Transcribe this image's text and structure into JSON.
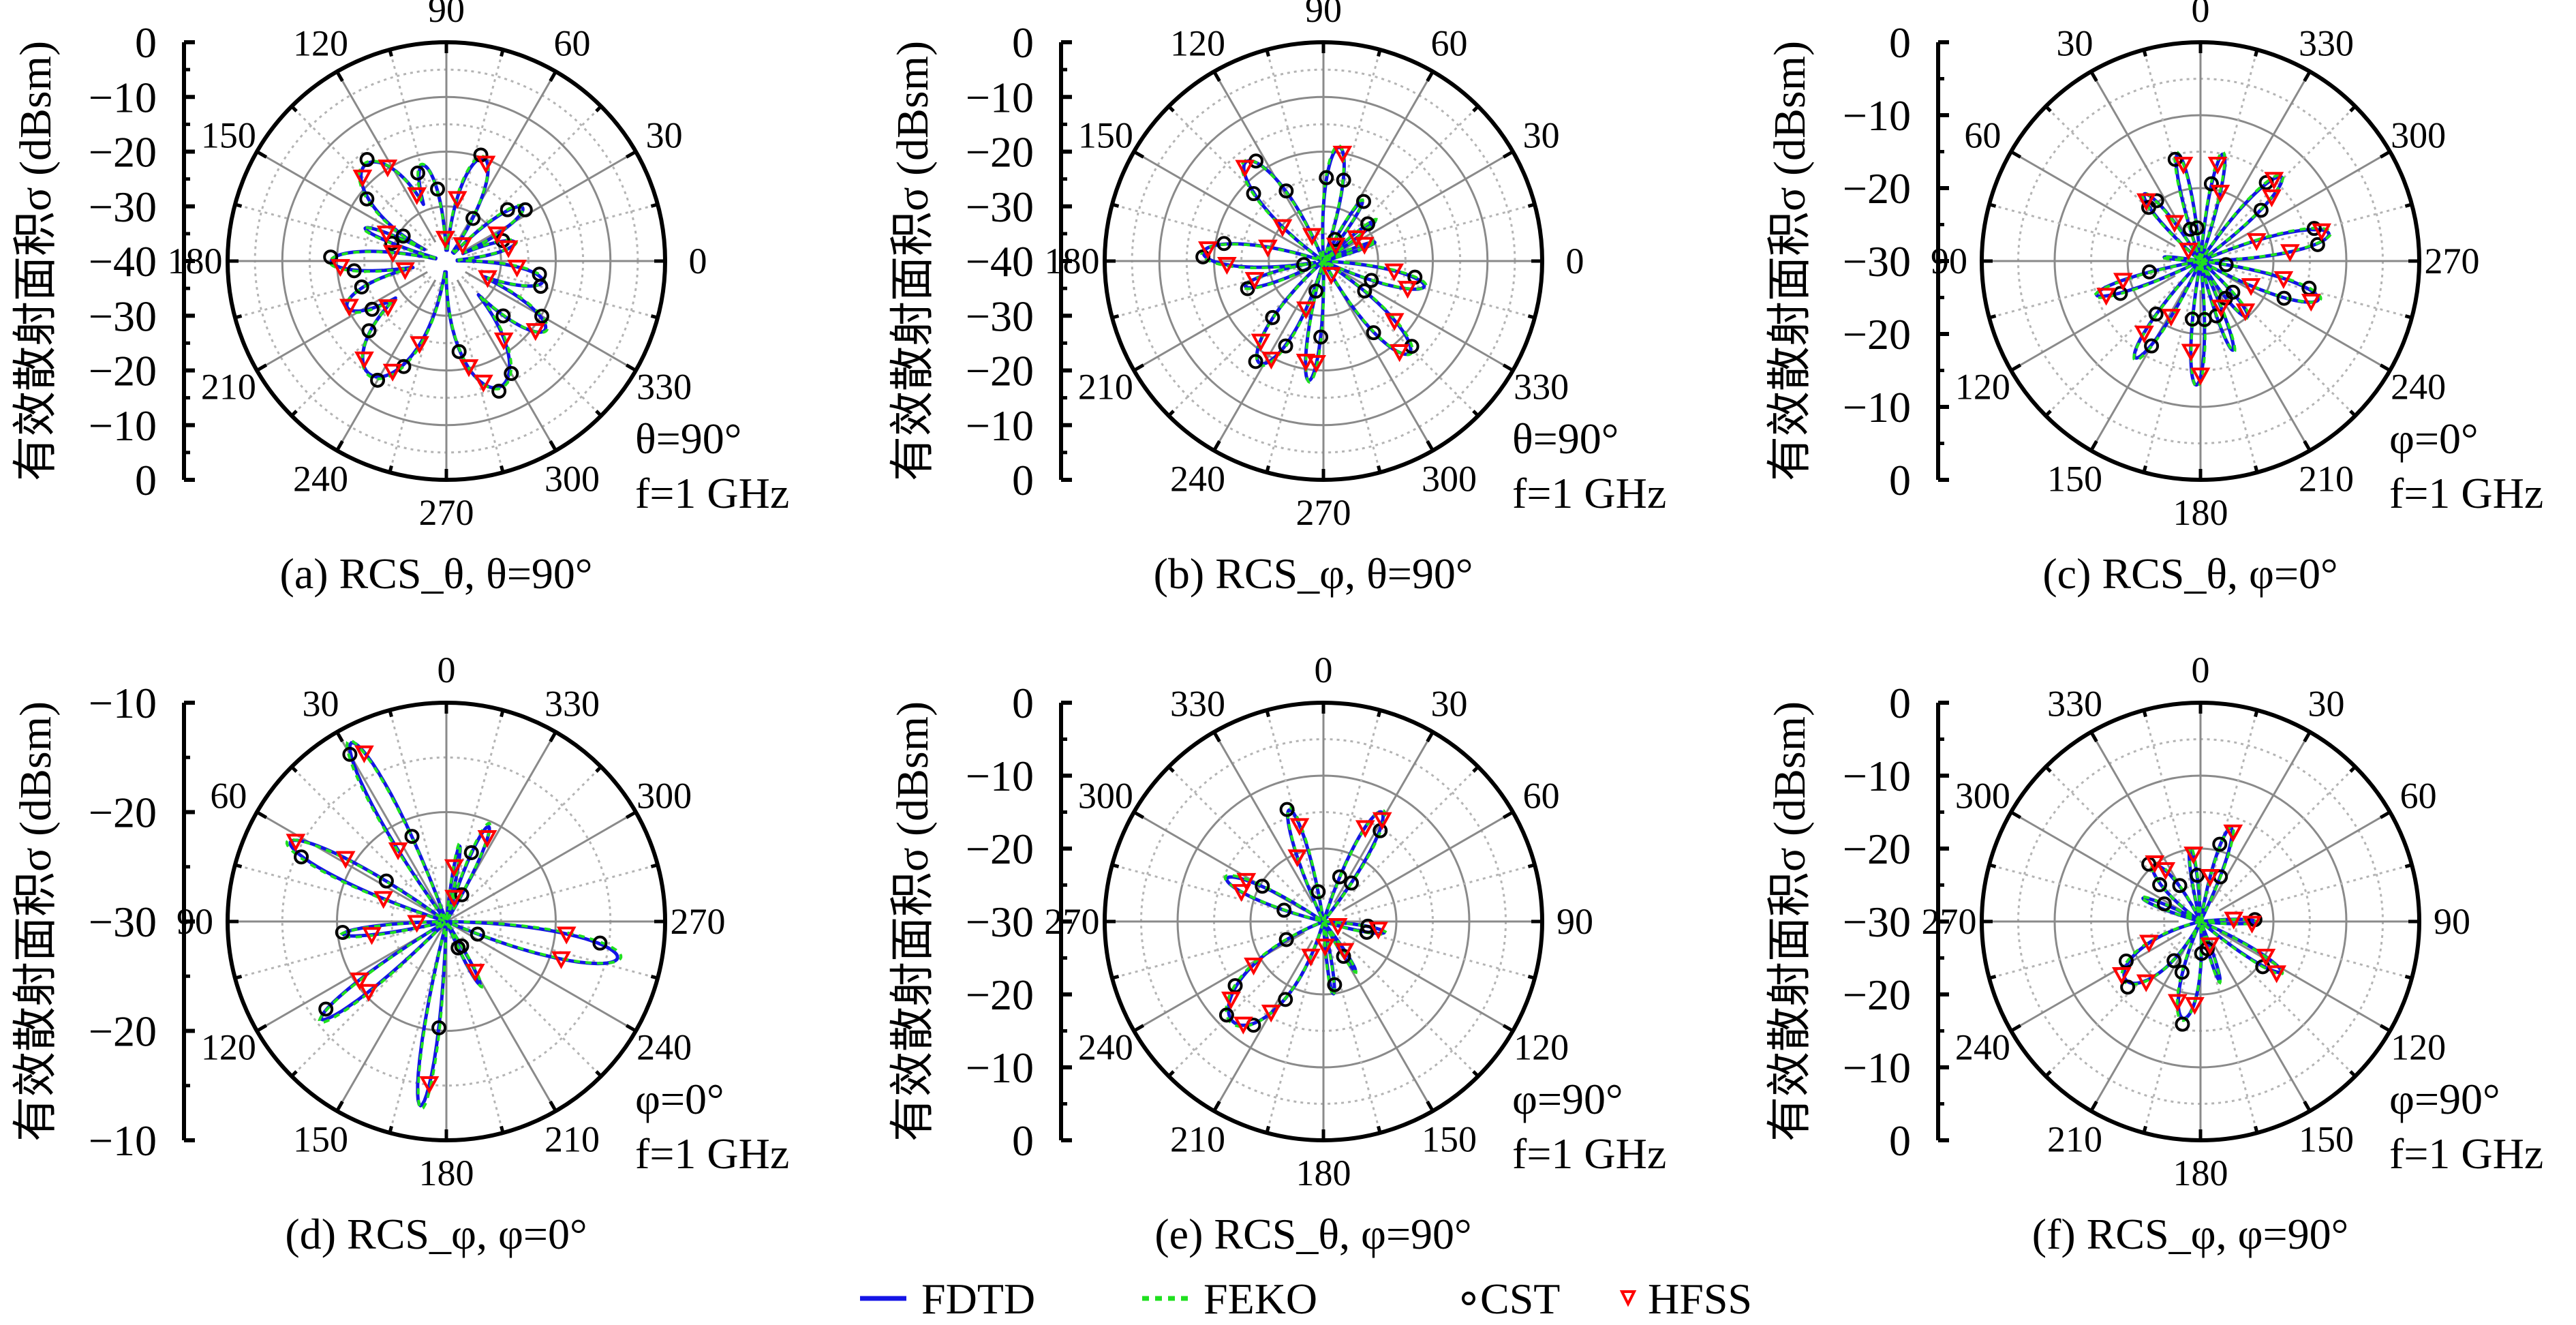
{
  "figure": {
    "y_axis_label": "有效散射面积σ (dBsm)",
    "legend": [
      {
        "name": "FDTD",
        "style": "solid-line",
        "color": "#1414e6"
      },
      {
        "name": "FEKO",
        "style": "dotted-line",
        "color": "#1fe01f"
      },
      {
        "name": "CST",
        "style": "circle-marker",
        "color": "#000000"
      },
      {
        "name": "HFSS",
        "style": "down-triangle-marker",
        "color": "#ff0000"
      }
    ]
  },
  "chart_data": [
    {
      "id": "a",
      "type": "polar-line",
      "caption": "(a) RCS_θ, θ=90°",
      "annotation": [
        "θ=90°",
        "f=1 GHz"
      ],
      "ylabel": "有效散射面积σ (dBsm)",
      "r_range_db": [
        -40,
        0
      ],
      "r_ticks": [
        0,
        -10,
        -20,
        -30,
        -40,
        -30,
        -20,
        -10,
        0
      ],
      "angle_convention": "0° at right, counter-clockwise",
      "angle_ticks": [
        0,
        30,
        60,
        90,
        120,
        150,
        180,
        210,
        240,
        270,
        300,
        330
      ],
      "grid": {
        "solid_rings_db": [
          -10,
          -20,
          -30
        ],
        "dotted_rings_db": [
          -5,
          -15,
          -25,
          -35
        ],
        "inner_blank_db": -36
      },
      "floor_db": -38,
      "fdtd_lobes": [
        {
          "center_deg": 130,
          "peak_db": -17,
          "halfwidth_deg": 24
        },
        {
          "center_deg": 158,
          "peak_db": -24,
          "halfwidth_deg": 6
        },
        {
          "center_deg": 180,
          "peak_db": -19,
          "halfwidth_deg": 12
        },
        {
          "center_deg": 205,
          "peak_db": -20,
          "halfwidth_deg": 16
        },
        {
          "center_deg": 236,
          "peak_db": -15,
          "halfwidth_deg": 26
        },
        {
          "center_deg": 293,
          "peak_db": -15,
          "halfwidth_deg": 24
        },
        {
          "center_deg": 325,
          "peak_db": -18,
          "halfwidth_deg": 14
        },
        {
          "center_deg": 348,
          "peak_db": -22,
          "halfwidth_deg": 13
        },
        {
          "center_deg": 15,
          "peak_db": -27,
          "halfwidth_deg": 10
        },
        {
          "center_deg": 35,
          "peak_db": -23,
          "halfwidth_deg": 11
        },
        {
          "center_deg": 70,
          "peak_db": -20,
          "halfwidth_deg": 15
        },
        {
          "center_deg": 104,
          "peak_db": -22,
          "halfwidth_deg": 12
        }
      ],
      "cst_angles_deg": [
        20,
        33,
        40,
        58,
        72,
        85,
        97,
        108,
        128,
        142,
        150,
        162,
        178,
        186,
        197,
        213,
        222,
        240,
        248,
        262,
        278,
        292,
        300,
        316,
        330,
        345,
        352,
        5
      ],
      "hfss_angles_deg": [
        12,
        28,
        45,
        55,
        68,
        80,
        93,
        114,
        122,
        135,
        155,
        171,
        183,
        192,
        205,
        218,
        230,
        244,
        252,
        268,
        282,
        287,
        306,
        322,
        338,
        355,
        2
      ],
      "cst_offset_db": 0.7,
      "hfss_offset_db": -0.4
    },
    {
      "id": "b",
      "type": "polar-line",
      "caption": "(b) RCS_φ, θ=90°",
      "annotation": [
        "θ=90°",
        "f=1 GHz"
      ],
      "ylabel": "有效散射面积σ (dBsm)",
      "r_range_db": [
        -40,
        0
      ],
      "r_ticks": [
        0,
        -10,
        -20,
        -30,
        -40,
        -30,
        -20,
        -10,
        0
      ],
      "angle_convention": "0° at right, counter-clockwise",
      "angle_ticks": [
        0,
        30,
        60,
        90,
        120,
        150,
        180,
        210,
        240,
        270,
        300,
        330
      ],
      "grid": {
        "solid_rings_db": [
          -10,
          -20,
          -30
        ],
        "dotted_rings_db": [
          -5,
          -15,
          -25,
          -35
        ],
        "inner_blank_db": -36
      },
      "floor_db": -40,
      "fdtd_lobes": [
        {
          "center_deg": 128,
          "peak_db": -17,
          "halfwidth_deg": 16
        },
        {
          "center_deg": 176,
          "peak_db": -18,
          "halfwidth_deg": 14
        },
        {
          "center_deg": 198,
          "peak_db": -25,
          "halfwidth_deg": 9
        },
        {
          "center_deg": 238,
          "peak_db": -18,
          "halfwidth_deg": 16
        },
        {
          "center_deg": 263,
          "peak_db": -18,
          "halfwidth_deg": 8
        },
        {
          "center_deg": 313,
          "peak_db": -17,
          "halfwidth_deg": 14
        },
        {
          "center_deg": 346,
          "peak_db": -21,
          "halfwidth_deg": 11
        },
        {
          "center_deg": 82,
          "peak_db": -19,
          "halfwidth_deg": 11
        },
        {
          "center_deg": 57,
          "peak_db": -27,
          "halfwidth_deg": 6
        },
        {
          "center_deg": 38,
          "peak_db": -28,
          "halfwidth_deg": 5
        },
        {
          "center_deg": 20,
          "peak_db": -30,
          "halfwidth_deg": 5
        }
      ],
      "cst_angles_deg": [
        118,
        124,
        136,
        150,
        162,
        170,
        178,
        190,
        200,
        228,
        236,
        246,
        256,
        268,
        305,
        316,
        324,
        338,
        350,
        40,
        56,
        62,
        76,
        88
      ],
      "hfss_angles_deg": [
        114,
        130,
        140,
        146,
        166,
        174,
        182,
        195,
        210,
        232,
        242,
        250,
        260,
        266,
        300,
        310,
        320,
        342,
        352,
        357,
        22,
        35,
        45,
        52,
        70,
        80,
        95
      ],
      "cst_offset_db": 0.5,
      "hfss_offset_db": -0.3
    },
    {
      "id": "c",
      "type": "polar-line",
      "caption": "(c) RCS_θ, φ=0°",
      "annotation": [
        "φ=0°",
        "f=1 GHz"
      ],
      "ylabel": "有效散射面积σ (dBsm)",
      "r_range_db": [
        -30,
        0
      ],
      "r_ticks": [
        0,
        -10,
        -20,
        -30,
        -20,
        -10,
        0
      ],
      "angle_convention": "0° at top, counter-clockwise",
      "angle_ticks": [
        0,
        30,
        60,
        90,
        120,
        150,
        180,
        210,
        240,
        270,
        300,
        330
      ],
      "grid": {
        "solid_rings_db": [
          -10,
          -20
        ],
        "dotted_rings_db": [
          -5,
          -15,
          -25
        ],
        "inner_blank_db": -26
      },
      "floor_db": -30,
      "fdtd_lobes": [
        {
          "center_deg": 12,
          "peak_db": -15,
          "halfwidth_deg": 7
        },
        {
          "center_deg": 348,
          "peak_db": -15,
          "halfwidth_deg": 7
        },
        {
          "center_deg": 40,
          "peak_db": -18,
          "halfwidth_deg": 9
        },
        {
          "center_deg": 316,
          "peak_db": -14,
          "halfwidth_deg": 10
        },
        {
          "center_deg": 282,
          "peak_db": -12,
          "halfwidth_deg": 11
        },
        {
          "center_deg": 252,
          "peak_db": -13,
          "halfwidth_deg": 11
        },
        {
          "center_deg": 220,
          "peak_db": -20,
          "halfwidth_deg": 9
        },
        {
          "center_deg": 200,
          "peak_db": -17,
          "halfwidth_deg": 6
        },
        {
          "center_deg": 178,
          "peak_db": -13,
          "halfwidth_deg": 8
        },
        {
          "center_deg": 146,
          "peak_db": -14,
          "halfwidth_deg": 9
        },
        {
          "center_deg": 108,
          "peak_db": -15,
          "halfwidth_deg": 8
        },
        {
          "center_deg": 84,
          "peak_db": -25,
          "halfwidth_deg": 4
        }
      ],
      "cst_angles_deg": [
        6,
        14,
        18,
        36,
        44,
        102,
        112,
        140,
        150,
        156,
        172,
        184,
        196,
        214,
        226,
        246,
        256,
        262,
        278,
        286,
        310,
        320,
        330,
        352,
        358
      ],
      "hfss_angles_deg": [
        4,
        10,
        20,
        34,
        42,
        48,
        104,
        110,
        116,
        142,
        152,
        160,
        174,
        180,
        194,
        204,
        222,
        244,
        250,
        258,
        276,
        284,
        290,
        312,
        318,
        326,
        344,
        350
      ],
      "cst_offset_db": 0.6,
      "hfss_offset_db": -0.3
    },
    {
      "id": "d",
      "type": "polar-line",
      "caption": "(d) RCS_φ, φ=0°",
      "annotation": [
        "φ=0°",
        "f=1 GHz"
      ],
      "ylabel": "有效散射面积σ (dBsm)",
      "r_range_db": [
        -30,
        -10
      ],
      "r_ticks": [
        -10,
        -20,
        -30,
        -20,
        -10
      ],
      "angle_convention": "0° at top, counter-clockwise",
      "angle_ticks": [
        0,
        30,
        60,
        90,
        120,
        150,
        180,
        210,
        240,
        270,
        300,
        330
      ],
      "grid": {
        "solid_rings_db": [
          -20
        ],
        "dotted_rings_db": [
          -15,
          -25
        ],
        "inner_blank_db": -30
      },
      "floor_db": -30,
      "fdtd_lobes": [
        {
          "center_deg": 28,
          "peak_db": -11.5,
          "halfwidth_deg": 8
        },
        {
          "center_deg": 63,
          "peak_db": -14,
          "halfwidth_deg": 9
        },
        {
          "center_deg": 97,
          "peak_db": -20.5,
          "halfwidth_deg": 6
        },
        {
          "center_deg": 128,
          "peak_db": -15.5,
          "halfwidth_deg": 7
        },
        {
          "center_deg": 172,
          "peak_db": -13,
          "halfwidth_deg": 6
        },
        {
          "center_deg": 208,
          "peak_db": -23.5,
          "halfwidth_deg": 5
        },
        {
          "center_deg": 258,
          "peak_db": -14,
          "halfwidth_deg": 11
        },
        {
          "center_deg": 336,
          "peak_db": -20.5,
          "halfwidth_deg": 7
        },
        {
          "center_deg": 350,
          "peak_db": -23,
          "halfwidth_deg": 4
        }
      ],
      "cst_angles_deg": [
        22,
        30,
        40,
        56,
        66,
        74,
        96,
        104,
        120,
        126,
        136,
        164,
        176,
        184,
        204,
        212,
        248,
        262,
        272,
        330,
        340,
        346,
        356
      ],
      "hfss_angles_deg": [
        20,
        26,
        34,
        58,
        62,
        70,
        92,
        100,
        124,
        132,
        138,
        166,
        174,
        180,
        200,
        210,
        216,
        244,
        252,
        264,
        270,
        328,
        334,
        342,
        352,
        2
      ],
      "cst_offset_db": 0.3,
      "hfss_offset_db": -0.2
    },
    {
      "id": "e",
      "type": "polar-line",
      "caption": "(e) RCS_θ, φ=90°",
      "annotation": [
        "φ=90°",
        "f=1 GHz"
      ],
      "ylabel": "有效散射面积σ (dBsm)",
      "r_range_db": [
        -30,
        0
      ],
      "r_ticks": [
        0,
        -10,
        -20,
        -30,
        -20,
        -10,
        0
      ],
      "angle_convention": "0° at top, clockwise",
      "angle_ticks": [
        0,
        30,
        60,
        90,
        120,
        150,
        180,
        210,
        240,
        270,
        300,
        330
      ],
      "grid": {
        "solid_rings_db": [
          -10,
          -20
        ],
        "dotted_rings_db": [
          -5,
          -15,
          -25
        ],
        "inner_blank_db": -27
      },
      "floor_db": -30,
      "fdtd_lobes": [
        {
          "center_deg": 28,
          "peak_db": -13,
          "halfwidth_deg": 10
        },
        {
          "center_deg": 343,
          "peak_db": -14,
          "halfwidth_deg": 8
        },
        {
          "center_deg": 294,
          "peak_db": -15.5,
          "halfwidth_deg": 10
        },
        {
          "center_deg": 222,
          "peak_db": -11.5,
          "halfwidth_deg": 26
        },
        {
          "center_deg": 100,
          "peak_db": -21.5,
          "halfwidth_deg": 7
        },
        {
          "center_deg": 147,
          "peak_db": -22,
          "halfwidth_deg": 5
        },
        {
          "center_deg": 172,
          "peak_db": -20,
          "halfwidth_deg": 5
        }
      ],
      "cst_angles_deg": [
        20,
        32,
        36,
        334,
        342,
        350,
        286,
        300,
        306,
        196,
        206,
        214,
        226,
        234,
        244,
        252,
        170,
        96,
        104,
        140,
        150
      ],
      "hfss_angles_deg": [
        14,
        24,
        30,
        38,
        338,
        346,
        352,
        282,
        290,
        298,
        304,
        200,
        210,
        218,
        230,
        238,
        248,
        176,
        98,
        106,
        144,
        152
      ],
      "cst_offset_db": 0.4,
      "hfss_offset_db": -0.2
    },
    {
      "id": "f",
      "type": "polar-line",
      "caption": "(f) RCS_φ, φ=90°",
      "annotation": [
        "φ=90°",
        "f=1 GHz"
      ],
      "ylabel": "有效散射面积σ (dBsm)",
      "r_range_db": [
        -30,
        0
      ],
      "r_ticks": [
        0,
        -10,
        -20,
        -30,
        -20,
        -10,
        0
      ],
      "angle_convention": "0° at top, clockwise",
      "angle_ticks": [
        0,
        30,
        60,
        90,
        120,
        150,
        180,
        210,
        240,
        270,
        300,
        330
      ],
      "grid": {
        "solid_rings_db": [
          -10,
          -20
        ],
        "dotted_rings_db": [
          -5,
          -15,
          -25
        ],
        "inner_blank_db": -27
      },
      "floor_db": -30,
      "fdtd_lobes": [
        {
          "center_deg": 18,
          "peak_db": -16.5,
          "halfwidth_deg": 8
        },
        {
          "center_deg": 352,
          "peak_db": -20,
          "halfwidth_deg": 6
        },
        {
          "center_deg": 320,
          "peak_db": -20,
          "halfwidth_deg": 14
        },
        {
          "center_deg": 292,
          "peak_db": -21.5,
          "halfwidth_deg": 6
        },
        {
          "center_deg": 232,
          "peak_db": -17,
          "halfwidth_deg": 24
        },
        {
          "center_deg": 190,
          "peak_db": -16.5,
          "halfwidth_deg": 14
        },
        {
          "center_deg": 162,
          "peak_db": -21.5,
          "halfwidth_deg": 5
        },
        {
          "center_deg": 122,
          "peak_db": -17,
          "halfwidth_deg": 8
        },
        {
          "center_deg": 90,
          "peak_db": -22.5,
          "halfwidth_deg": 6
        }
      ],
      "cst_angles_deg": [
        14,
        24,
        356,
        330,
        318,
        312,
        296,
        284,
        256,
        242,
        228,
        214,
        200,
        190,
        178,
        166,
        114,
        126,
        132,
        88,
        96,
        100
      ],
      "hfss_angles_deg": [
        12,
        20,
        28,
        354,
        326,
        322,
        306,
        300,
        262,
        248,
        236,
        222,
        208,
        196,
        184,
        170,
        158,
        118,
        124,
        86,
        92,
        104
      ],
      "cst_offset_db": 0.8,
      "hfss_offset_db": 0.4
    }
  ]
}
